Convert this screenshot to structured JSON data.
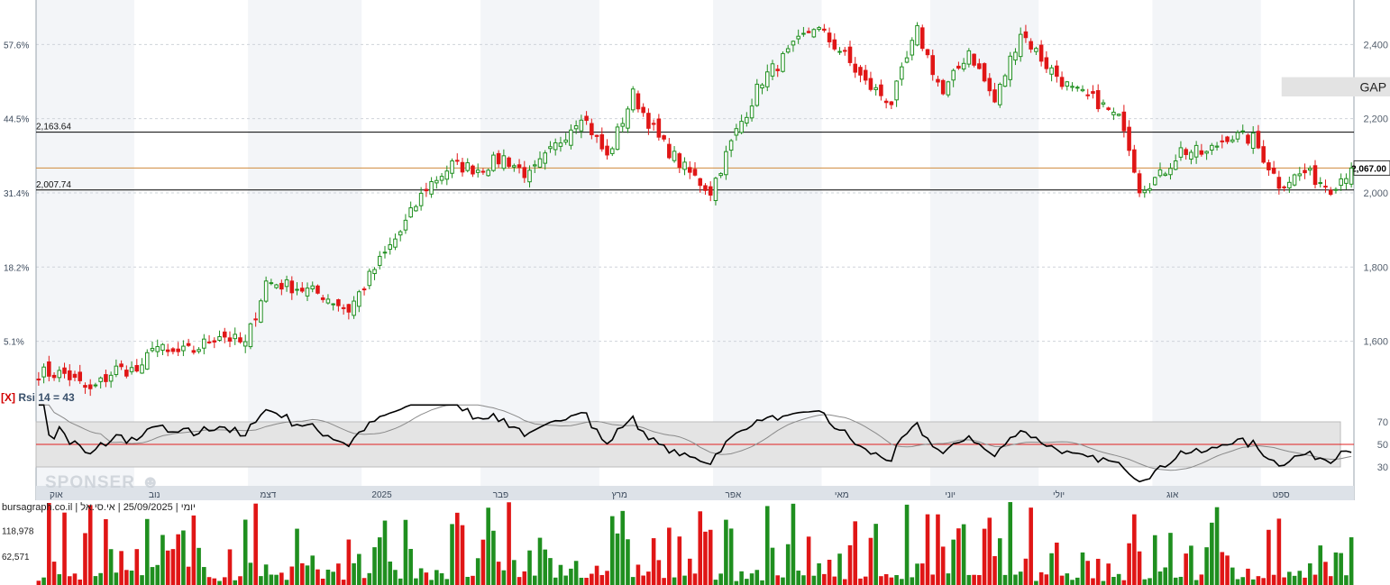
{
  "chart_data": [
    {
      "type": "candlestick",
      "y_right_ticks": [
        "2,400",
        "2,200",
        "2,000",
        "1,800",
        "1,600"
      ],
      "y_right_tick_values": [
        2400,
        2200,
        2000,
        1800,
        1600
      ],
      "y_left_pct_ticks": [
        "57.6%",
        "44.5%",
        "31.4%",
        "18.2%",
        "5.1%"
      ],
      "ylim": [
        1475,
        2520
      ],
      "last_price": "2,067.00",
      "last_price_value": 2067,
      "levels": [
        {
          "label": "2,163.64",
          "value": 2163.64,
          "color": "#000000"
        },
        {
          "label": "2,007.74",
          "value": 2007.74,
          "color": "#000000"
        }
      ],
      "annotation": {
        "text": "GAP",
        "from_index": 241,
        "to_index": 262,
        "low": 2260,
        "high": 2312
      },
      "x_labels": [
        "אוק",
        "נוב",
        "דצמ",
        "2025",
        "פבר",
        "מרץ",
        "אפר",
        "מאי",
        "יוני",
        "יולי",
        "אוג",
        "ספט"
      ],
      "x_label_indices": [
        2,
        21,
        43,
        65,
        88,
        111,
        133,
        154,
        175,
        196,
        218,
        239
      ],
      "anchors": [
        [
          0,
          1515
        ],
        [
          5,
          1512
        ],
        [
          10,
          1465
        ],
        [
          15,
          1525
        ],
        [
          20,
          1520
        ],
        [
          22,
          1595
        ],
        [
          25,
          1565
        ],
        [
          30,
          1575
        ],
        [
          35,
          1620
        ],
        [
          40,
          1590
        ],
        [
          44,
          1760
        ],
        [
          50,
          1745
        ],
        [
          55,
          1725
        ],
        [
          60,
          1685
        ],
        [
          65,
          1795
        ],
        [
          70,
          1895
        ],
        [
          75,
          2015
        ],
        [
          80,
          2075
        ],
        [
          85,
          2065
        ],
        [
          90,
          2095
        ],
        [
          95,
          2045
        ],
        [
          100,
          2125
        ],
        [
          105,
          2215
        ],
        [
          110,
          2095
        ],
        [
          115,
          2265
        ],
        [
          120,
          2145
        ],
        [
          125,
          2065
        ],
        [
          130,
          2005
        ],
        [
          135,
          2165
        ],
        [
          140,
          2305
        ],
        [
          145,
          2375
        ],
        [
          150,
          2450
        ],
        [
          155,
          2385
        ],
        [
          160,
          2295
        ],
        [
          165,
          2245
        ],
        [
          170,
          2435
        ],
        [
          175,
          2265
        ],
        [
          180,
          2385
        ],
        [
          185,
          2245
        ],
        [
          190,
          2435
        ],
        [
          195,
          2345
        ],
        [
          200,
          2275
        ],
        [
          205,
          2245
        ],
        [
          210,
          2185
        ],
        [
          213,
          2015
        ],
        [
          217,
          2045
        ],
        [
          221,
          2115
        ],
        [
          226,
          2105
        ],
        [
          230,
          2155
        ],
        [
          235,
          2145
        ],
        [
          240,
          2025
        ],
        [
          245,
          2055
        ],
        [
          250,
          2015
        ],
        [
          254,
          2067
        ]
      ],
      "rsi": {
        "title": "Rsi 14 = 43",
        "close_mark": "[X]",
        "period": 14,
        "value": 43,
        "ticks": [
          "70",
          "50",
          "30"
        ],
        "tick_values": [
          70,
          50,
          30
        ],
        "band": [
          30,
          70
        ],
        "mid_line": 50
      },
      "volume": {
        "ticks": [
          "118,978",
          "62,571"
        ],
        "tick_values": [
          118978,
          62571
        ],
        "max": 185000
      },
      "colors": {
        "up": "#1f8f1f",
        "down": "#e01616",
        "price_line": "#d08a3c",
        "rsi_line": "#000000",
        "rsi_ma": "#8a8a8a",
        "rsi_mid": "#e02020",
        "band_fill": "#e4e4e4",
        "stripe": "#f3f5f8"
      }
    }
  ],
  "source_label": "יומי | 25/09/2025 | אי.סי.אל | bursagraph.co.il",
  "watermark": "SPONSER",
  "logo": {
    "icon": "monkey-logo-icon"
  }
}
